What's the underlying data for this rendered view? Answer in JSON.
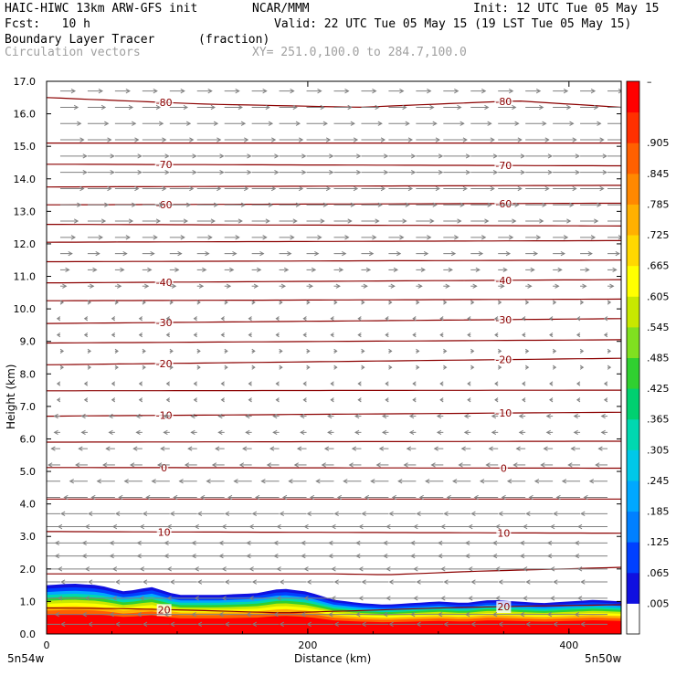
{
  "header": {
    "model": "HAIC-HIWC 13km ARW-GFS init",
    "org": "NCAR/MMM",
    "init": "Init: 12 UTC Tue 05 May 15",
    "fcst": "Fcst:   10 h",
    "valid": "Valid: 22 UTC Tue 05 May 15 (19 LST Tue 05 May 15)",
    "field1": "Boundary Layer Tracer",
    "field1_units": "(fraction)",
    "field2": "Circulation vectors",
    "xy": "XY= 251.0,100.0 to 284.7,100.0"
  },
  "chart_data": {
    "type": "heatmap",
    "title": "Boundary Layer Tracer",
    "xlabel": "Distance (km)",
    "ylabel": "Height (km)",
    "xlim": [
      0,
      440
    ],
    "ylim": [
      0,
      17
    ],
    "x_ticks": [
      "0",
      "200",
      "400"
    ],
    "x_tick_values": [
      0,
      200,
      400
    ],
    "y_ticks": [
      "0.0",
      "1.0",
      "2.0",
      "3.0",
      "4.0",
      "5.0",
      "6.0",
      "7.0",
      "8.0",
      "9.0",
      "10.0",
      "11.0",
      "12.0",
      "13.0",
      "14.0",
      "15.0",
      "16.0",
      "17.0"
    ],
    "y_tick_values": [
      0,
      1,
      2,
      3,
      4,
      5,
      6,
      7,
      8,
      9,
      10,
      11,
      12,
      13,
      14,
      15,
      16,
      17
    ],
    "endpoint_labels": {
      "left": "5n54w",
      "right": "5n50w"
    },
    "colorbar": {
      "labels": [
        ".005",
        ".065",
        ".125",
        ".185",
        ".245",
        ".305",
        ".365",
        ".425",
        ".485",
        ".545",
        ".605",
        ".665",
        ".725",
        ".785",
        ".845",
        ".905"
      ],
      "top_label": "–",
      "colors": [
        "#ffffff",
        "#1010e0",
        "#0040ff",
        "#0080ff",
        "#00a8ff",
        "#00c8e8",
        "#00d8b0",
        "#00d070",
        "#30d030",
        "#80e020",
        "#c8e800",
        "#ffff00",
        "#ffd800",
        "#ffb000",
        "#ff8800",
        "#ff6000",
        "#ff3000",
        "#ff0000"
      ]
    },
    "temperature_contours": {
      "color": "#8b0000",
      "levels": [
        20,
        10,
        0,
        -10,
        -20,
        -30,
        -40,
        -60,
        -70,
        -80
      ],
      "lines": [
        {
          "label": "20",
          "x": [
            0,
            60,
            120,
            180,
            240,
            300,
            360,
            440
          ],
          "z": [
            0.8,
            0.78,
            0.72,
            0.65,
            0.72,
            0.8,
            0.85,
            0.9
          ]
        },
        {
          "label": "",
          "x": [
            0,
            220,
            260,
            330,
            440
          ],
          "z": [
            1.85,
            1.85,
            1.82,
            1.93,
            2.05
          ]
        },
        {
          "label": "10",
          "x": [
            0,
            440
          ],
          "z": [
            3.15,
            3.1
          ]
        },
        {
          "label": "",
          "x": [
            0,
            440
          ],
          "z": [
            4.15,
            4.15
          ]
        },
        {
          "label": "0",
          "x": [
            0,
            440
          ],
          "z": [
            5.12,
            5.1
          ]
        },
        {
          "label": "",
          "x": [
            0,
            440
          ],
          "z": [
            5.9,
            5.93
          ]
        },
        {
          "label": "-10",
          "x": [
            0,
            440
          ],
          "z": [
            6.7,
            6.82
          ]
        },
        {
          "label": "",
          "x": [
            0,
            440
          ],
          "z": [
            7.48,
            7.5
          ]
        },
        {
          "label": "-20",
          "x": [
            0,
            440
          ],
          "z": [
            8.28,
            8.48
          ]
        },
        {
          "label": "",
          "x": [
            0,
            440
          ],
          "z": [
            8.95,
            9.05
          ]
        },
        {
          "label": "-30",
          "x": [
            0,
            440
          ],
          "z": [
            9.55,
            9.7
          ]
        },
        {
          "label": "",
          "x": [
            0,
            440
          ],
          "z": [
            10.25,
            10.3
          ]
        },
        {
          "label": "-40",
          "x": [
            0,
            440
          ],
          "z": [
            10.8,
            10.9
          ]
        },
        {
          "label": "",
          "x": [
            0,
            440
          ],
          "z": [
            11.45,
            11.5
          ]
        },
        {
          "label": "",
          "x": [
            0,
            440
          ],
          "z": [
            12.05,
            12.1
          ]
        },
        {
          "label": "",
          "x": [
            0,
            440
          ],
          "z": [
            12.6,
            12.55
          ]
        },
        {
          "label": "-60",
          "x": [
            0,
            440
          ],
          "z": [
            13.2,
            13.25
          ]
        },
        {
          "label": "",
          "x": [
            0,
            440
          ],
          "z": [
            13.75,
            13.8
          ]
        },
        {
          "label": "-70",
          "x": [
            0,
            440
          ],
          "z": [
            14.45,
            14.4
          ]
        },
        {
          "label": "",
          "x": [
            0,
            440
          ],
          "z": [
            15.1,
            15.1
          ]
        },
        {
          "label": "-80",
          "x": [
            0,
            120,
            240,
            360,
            440
          ],
          "z": [
            16.5,
            16.3,
            16.2,
            16.4,
            16.2
          ]
        }
      ]
    },
    "pbl_top": {
      "x": [
        0,
        20,
        40,
        60,
        80,
        100,
        130,
        160,
        180,
        200,
        220,
        240,
        260,
        280,
        300,
        320,
        340,
        360,
        380,
        400,
        420,
        440
      ],
      "z": [
        1.5,
        1.55,
        1.5,
        1.3,
        1.45,
        1.2,
        1.2,
        1.25,
        1.4,
        1.3,
        1.05,
        0.95,
        0.9,
        0.95,
        1.0,
        0.95,
        1.05,
        1.0,
        0.95,
        1.0,
        1.05,
        1.0
      ]
    },
    "vector_levels": [
      {
        "z": 0.3,
        "u": -9
      },
      {
        "z": 0.6,
        "u": -11
      },
      {
        "z": 1.1,
        "u": -10
      },
      {
        "z": 1.6,
        "u": -9
      },
      {
        "z": 2.0,
        "u": -10
      },
      {
        "z": 2.4,
        "u": -11
      },
      {
        "z": 2.8,
        "u": -11
      },
      {
        "z": 3.3,
        "u": -10
      },
      {
        "z": 3.7,
        "u": -9
      },
      {
        "z": 4.2,
        "u": -8
      },
      {
        "z": 4.7,
        "u": -6
      },
      {
        "z": 5.2,
        "u": -4
      },
      {
        "z": 5.7,
        "u": -3
      },
      {
        "z": 6.2,
        "u": -2
      },
      {
        "z": 6.7,
        "u": -2
      },
      {
        "z": 7.2,
        "u": -1
      },
      {
        "z": 7.7,
        "u": -1
      },
      {
        "z": 8.2,
        "u": 1
      },
      {
        "z": 8.7,
        "u": 1
      },
      {
        "z": 9.2,
        "u": -1
      },
      {
        "z": 9.7,
        "u": -1
      },
      {
        "z": 10.2,
        "u": 1
      },
      {
        "z": 10.7,
        "u": 2
      },
      {
        "z": 11.2,
        "u": 3
      },
      {
        "z": 11.7,
        "u": 4
      },
      {
        "z": 12.2,
        "u": 5
      },
      {
        "z": 12.7,
        "u": 6
      },
      {
        "z": 13.2,
        "u": 7
      },
      {
        "z": 13.7,
        "u": 8
      },
      {
        "z": 14.2,
        "u": 9
      },
      {
        "z": 14.7,
        "u": 9
      },
      {
        "z": 15.2,
        "u": 8
      },
      {
        "z": 15.7,
        "u": 7
      },
      {
        "z": 16.2,
        "u": 6
      },
      {
        "z": 16.7,
        "u": 5
      }
    ]
  }
}
